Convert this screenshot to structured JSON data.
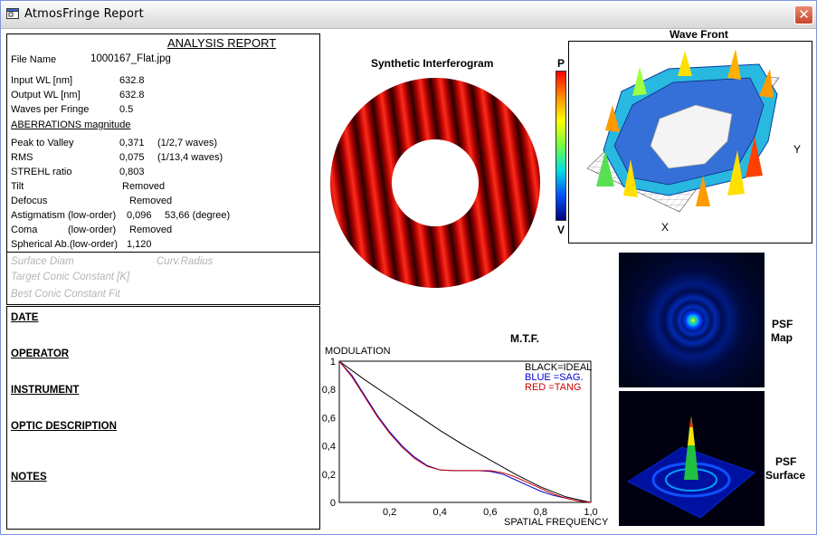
{
  "window": {
    "title": "AtmosFringe  Report",
    "close_symbol": "✕"
  },
  "report": {
    "title": "ANALYSIS  REPORT",
    "file_name_label": "File Name",
    "file_name": "1000167_Flat.jpg",
    "input_wl_label": "Input  WL [nm]",
    "input_wl": "632.8",
    "output_wl_label": "Output WL [nm]",
    "output_wl": "632.8",
    "waves_label": "Waves per Fringe",
    "waves": "0.5",
    "aberr_heading": "ABERRATIONS magnitude",
    "ptv_label": "Peak to Valley",
    "ptv": "0,371",
    "ptv_waves": "(1/2,7 waves)",
    "rms_label": "RMS",
    "rms": "0,075",
    "rms_waves": "(1/13,4 waves)",
    "strehl_label": "STREHL ratio",
    "strehl": "0,803",
    "tilt_label": "Tilt",
    "tilt": "Removed",
    "defocus_label": "Defocus",
    "defocus": "Removed",
    "astig_label": "Astigmatism  (low-order)",
    "astig": "0,096",
    "astig_deg": "53,66  (degree)",
    "coma_label": "Coma",
    "coma_order": "(low-order)",
    "coma": "Removed",
    "spherical_label": "Spherical Ab.(low-order)",
    "spherical": "1,120",
    "surface_diam": "Surface Diam",
    "curv_radius": "Curv.Radius",
    "target_conic": "Target Conic Constant [K]",
    "best_conic": "Best Conic Constant Fit"
  },
  "info": {
    "date": "DATE",
    "operator": "OPERATOR",
    "instrument": "INSTRUMENT",
    "optic": "OPTIC DESCRIPTION",
    "notes": "NOTES"
  },
  "interferogram": {
    "title": "Synthetic Interferogram"
  },
  "wavefront": {
    "title": "Wave Front",
    "scale_top": "P",
    "scale_bottom": "V",
    "axis_x": "X",
    "axis_y": "Y"
  },
  "psf": {
    "map_label_1": "PSF",
    "map_label_2": "Map",
    "surface_label_1": "PSF",
    "surface_label_2": "Surface"
  },
  "mtf": {
    "title": "M.T.F.",
    "ylabel": "MODULATION",
    "xlabel": "SPATIAL FREQUENCY",
    "legend_black": "BLACK=IDEAL",
    "legend_blue": "BLUE  =SAG.",
    "legend_red": "RED    =TANG",
    "colors": {
      "ideal": "#000000",
      "sag": "#0000cc",
      "tang": "#cc0000"
    }
  },
  "chart_data": {
    "type": "line",
    "title": "M.T.F.",
    "xlabel": "SPATIAL FREQUENCY",
    "ylabel": "MODULATION",
    "xlim": [
      0,
      1.0
    ],
    "ylim": [
      0,
      1
    ],
    "x_ticks": [
      "0,2",
      "0,4",
      "0,6",
      "0,8",
      "1,0"
    ],
    "y_ticks": [
      "0",
      "0,2",
      "0,4",
      "0,6",
      "0,8",
      "1"
    ],
    "legend": "top-right",
    "series": [
      {
        "name": "BLACK=IDEAL",
        "color": "#000000",
        "x": [
          0,
          0.1,
          0.2,
          0.3,
          0.4,
          0.5,
          0.6,
          0.7,
          0.8,
          0.9,
          1.0
        ],
        "y": [
          1.0,
          0.87,
          0.75,
          0.63,
          0.51,
          0.4,
          0.3,
          0.2,
          0.11,
          0.04,
          0.0
        ]
      },
      {
        "name": "BLUE  =SAG.",
        "color": "#0000cc",
        "x": [
          0,
          0.05,
          0.1,
          0.15,
          0.2,
          0.25,
          0.3,
          0.35,
          0.4,
          0.45,
          0.5,
          0.55,
          0.6,
          0.65,
          0.7,
          0.75,
          0.8,
          0.85,
          0.9,
          0.95,
          1.0
        ],
        "y": [
          1.0,
          0.9,
          0.76,
          0.62,
          0.5,
          0.4,
          0.32,
          0.26,
          0.23,
          0.225,
          0.225,
          0.225,
          0.22,
          0.2,
          0.16,
          0.12,
          0.08,
          0.05,
          0.03,
          0.01,
          0.0
        ]
      },
      {
        "name": "RED    =TANG",
        "color": "#cc0000",
        "x": [
          0,
          0.05,
          0.1,
          0.15,
          0.2,
          0.25,
          0.3,
          0.35,
          0.4,
          0.45,
          0.5,
          0.55,
          0.6,
          0.65,
          0.7,
          0.75,
          0.8,
          0.85,
          0.9,
          0.95,
          1.0
        ],
        "y": [
          1.0,
          0.89,
          0.75,
          0.61,
          0.49,
          0.39,
          0.31,
          0.255,
          0.23,
          0.225,
          0.225,
          0.225,
          0.225,
          0.21,
          0.18,
          0.14,
          0.1,
          0.06,
          0.03,
          0.01,
          0.0
        ]
      }
    ]
  }
}
